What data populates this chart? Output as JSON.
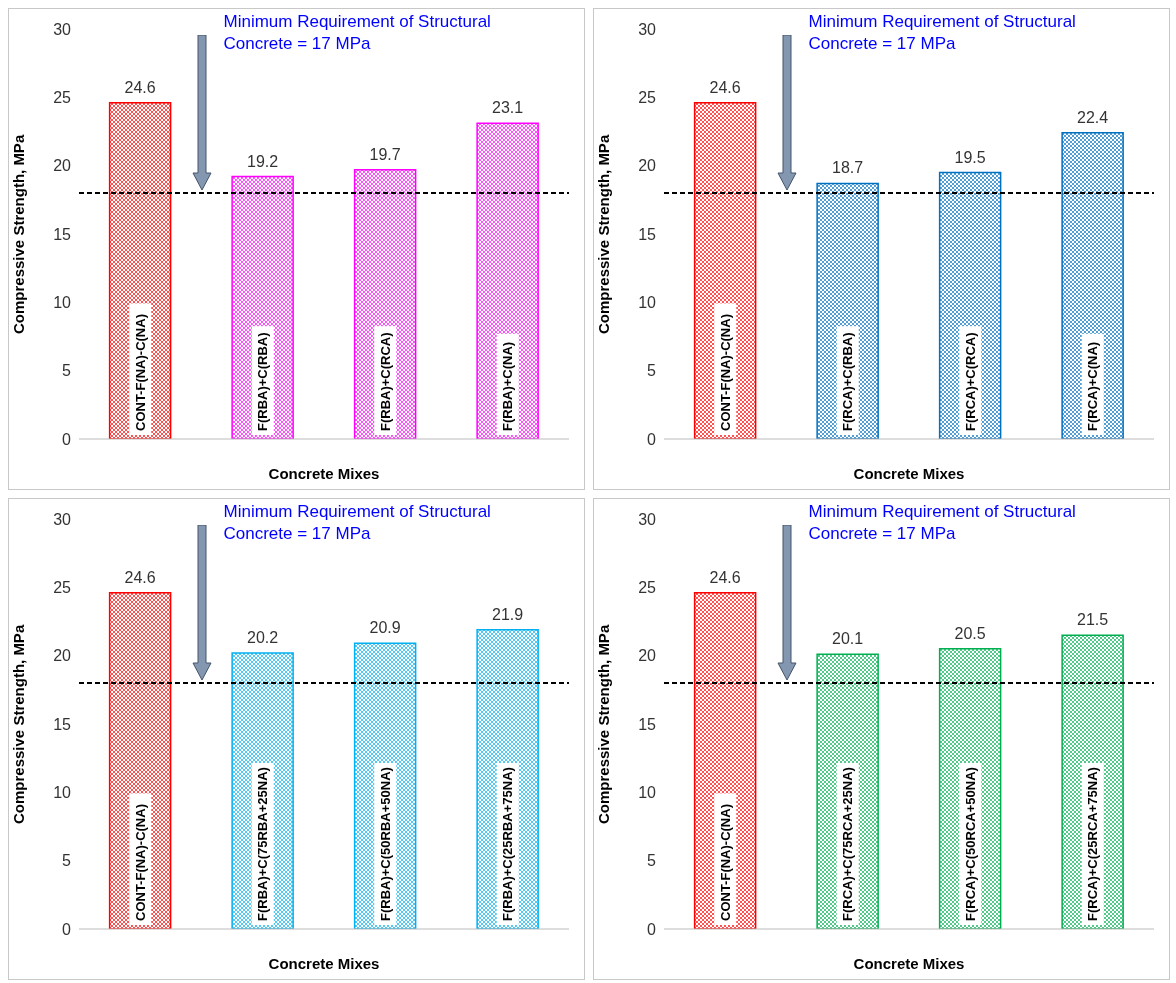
{
  "chart_data": [
    {
      "type": "bar",
      "xlabel": "Concrete Mixes",
      "ylabel": "Compressive Strength, MPa",
      "categories": [
        "CONT-F(NA)-C(NA)",
        "F(RBA)+C(RBA)",
        "F(RBA)+C(RCA)",
        "F(RBA)+C(NA)"
      ],
      "values": [
        24.6,
        19.2,
        19.7,
        23.1
      ],
      "colors": [
        "#ff0000",
        "#ff00ff",
        "#ff00ff",
        "#ff00ff"
      ],
      "ylim": [
        0,
        30
      ],
      "yticks": [
        0,
        5,
        10,
        15,
        20,
        25,
        30
      ],
      "grid": false,
      "data_labels": true,
      "annotations": [
        "Minimum Requirement of Structural Concrete = 17 MPa"
      ],
      "ref_lines": [
        {
          "axis": "y",
          "value": 18,
          "color": "#000000",
          "line_style": "dashed"
        }
      ]
    },
    {
      "type": "bar",
      "xlabel": "Concrete Mixes",
      "ylabel": "Compressive Strength, MPa",
      "categories": [
        "CONT-F(NA)-C(NA)",
        "F(RCA)+C(RBA)",
        "F(RCA)+C(RCA)",
        "F(RCA)+C(NA)"
      ],
      "values": [
        24.6,
        18.7,
        19.5,
        22.4
      ],
      "colors": [
        "#ff0000",
        "#0070c0",
        "#0070c0",
        "#0070c0"
      ],
      "ylim": [
        0,
        30
      ],
      "yticks": [
        0,
        5,
        10,
        15,
        20,
        25,
        30
      ],
      "grid": false,
      "data_labels": true,
      "annotations": [
        "Minimum Requirement of Structural Concrete = 17 MPa"
      ],
      "ref_lines": [
        {
          "axis": "y",
          "value": 18,
          "color": "#000000",
          "line_style": "dashed"
        }
      ]
    },
    {
      "type": "bar",
      "xlabel": "Concrete Mixes",
      "ylabel": "Compressive Strength, MPa",
      "categories": [
        "CONT-F(NA)-C(NA)",
        "F(RBA)+C(75RBA+25NA)",
        "F(RBA)+C(50RBA+50NA)",
        "F(RBA)+C(25RBA+75NA)"
      ],
      "values": [
        24.6,
        20.2,
        20.9,
        21.9
      ],
      "colors": [
        "#ff0000",
        "#00b0f0",
        "#00b0f0",
        "#00b0f0"
      ],
      "ylim": [
        0,
        30
      ],
      "yticks": [
        0,
        5,
        10,
        15,
        20,
        25,
        30
      ],
      "grid": false,
      "data_labels": true,
      "annotations": [
        "Minimum Requirement of Structural Concrete = 17 MPa"
      ],
      "ref_lines": [
        {
          "axis": "y",
          "value": 18,
          "color": "#000000",
          "line_style": "dashed"
        }
      ]
    },
    {
      "type": "bar",
      "xlabel": "Concrete Mixes",
      "ylabel": "Compressive Strength, MPa",
      "categories": [
        "CONT-F(NA)-C(NA)",
        "F(RCA)+C(75RCA+25NA)",
        "F(RCA)+C(50RCA+50NA)",
        "F(RCA)+C(25RCA+75NA)"
      ],
      "values": [
        24.6,
        20.1,
        20.5,
        21.5
      ],
      "colors": [
        "#ff0000",
        "#00b050",
        "#00b050",
        "#00b050"
      ],
      "ylim": [
        0,
        30
      ],
      "yticks": [
        0,
        5,
        10,
        15,
        20,
        25,
        30
      ],
      "grid": false,
      "data_labels": true,
      "annotations": [
        "Minimum Requirement of Structural Concrete = 17 MPa"
      ],
      "ref_lines": [
        {
          "axis": "y",
          "value": 18,
          "color": "#000000",
          "line_style": "dashed"
        }
      ]
    }
  ]
}
